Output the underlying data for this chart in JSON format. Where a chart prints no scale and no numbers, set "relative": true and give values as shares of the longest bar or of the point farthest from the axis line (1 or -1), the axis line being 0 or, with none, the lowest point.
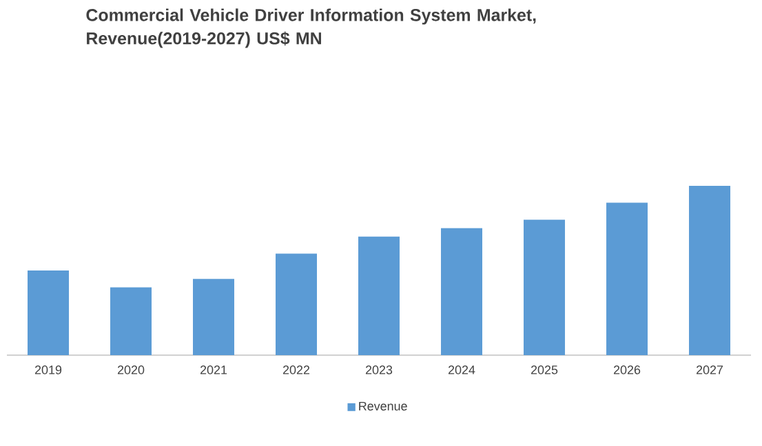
{
  "chart_data": {
    "type": "bar",
    "title": "Commercial Vehicle Driver Information System Market, Revenue(2019-2027) US$ MN",
    "categories": [
      "2019",
      "2020",
      "2021",
      "2022",
      "2023",
      "2024",
      "2025",
      "2026",
      "2027"
    ],
    "series": [
      {
        "name": "Revenue",
        "color": "#5b9bd5",
        "values": [
          0.5,
          0.4,
          0.45,
          0.6,
          0.7,
          0.75,
          0.8,
          0.9,
          1.0
        ]
      }
    ],
    "relative": true,
    "legend": "bottom"
  }
}
